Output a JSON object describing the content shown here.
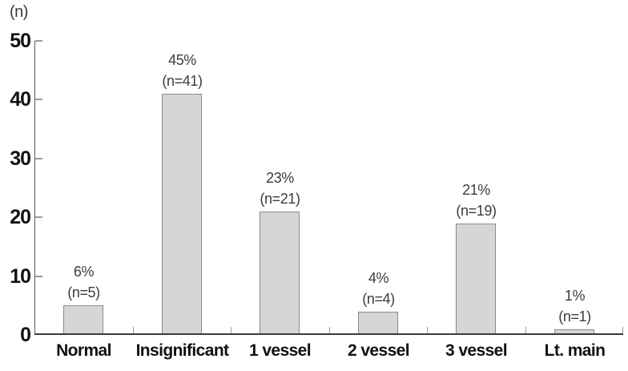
{
  "figure": {
    "unit_label": "(n)"
  },
  "chart_data": {
    "type": "bar",
    "title": "",
    "xlabel": "",
    "ylabel": "(n)",
    "categories": [
      "Normal",
      "Insignificant",
      "1 vessel",
      "2 vessel",
      "3 vessel",
      "Lt. main"
    ],
    "values": [
      5,
      41,
      21,
      4,
      19,
      1
    ],
    "percent_labels": [
      "6%",
      "45%",
      "23%",
      "4%",
      "21%",
      "1%"
    ],
    "count_labels": [
      "(n=5)",
      "(n=41)",
      "(n=21)",
      "(n=4)",
      "(n=19)",
      "(n=1)"
    ],
    "ylim": [
      0,
      50
    ],
    "yticks": [
      0,
      10,
      20,
      30,
      40,
      50
    ],
    "grid": false,
    "legend": "none",
    "colors": {
      "bar_fill": "#d6d6d6",
      "bar_border": "#8a8a8a",
      "axis_line": "#5a5a5a",
      "baseline": "#3a3a3a",
      "tick": "#9a9a9a",
      "value_text": "#3c3c3c",
      "axis_text": "#111111"
    }
  }
}
